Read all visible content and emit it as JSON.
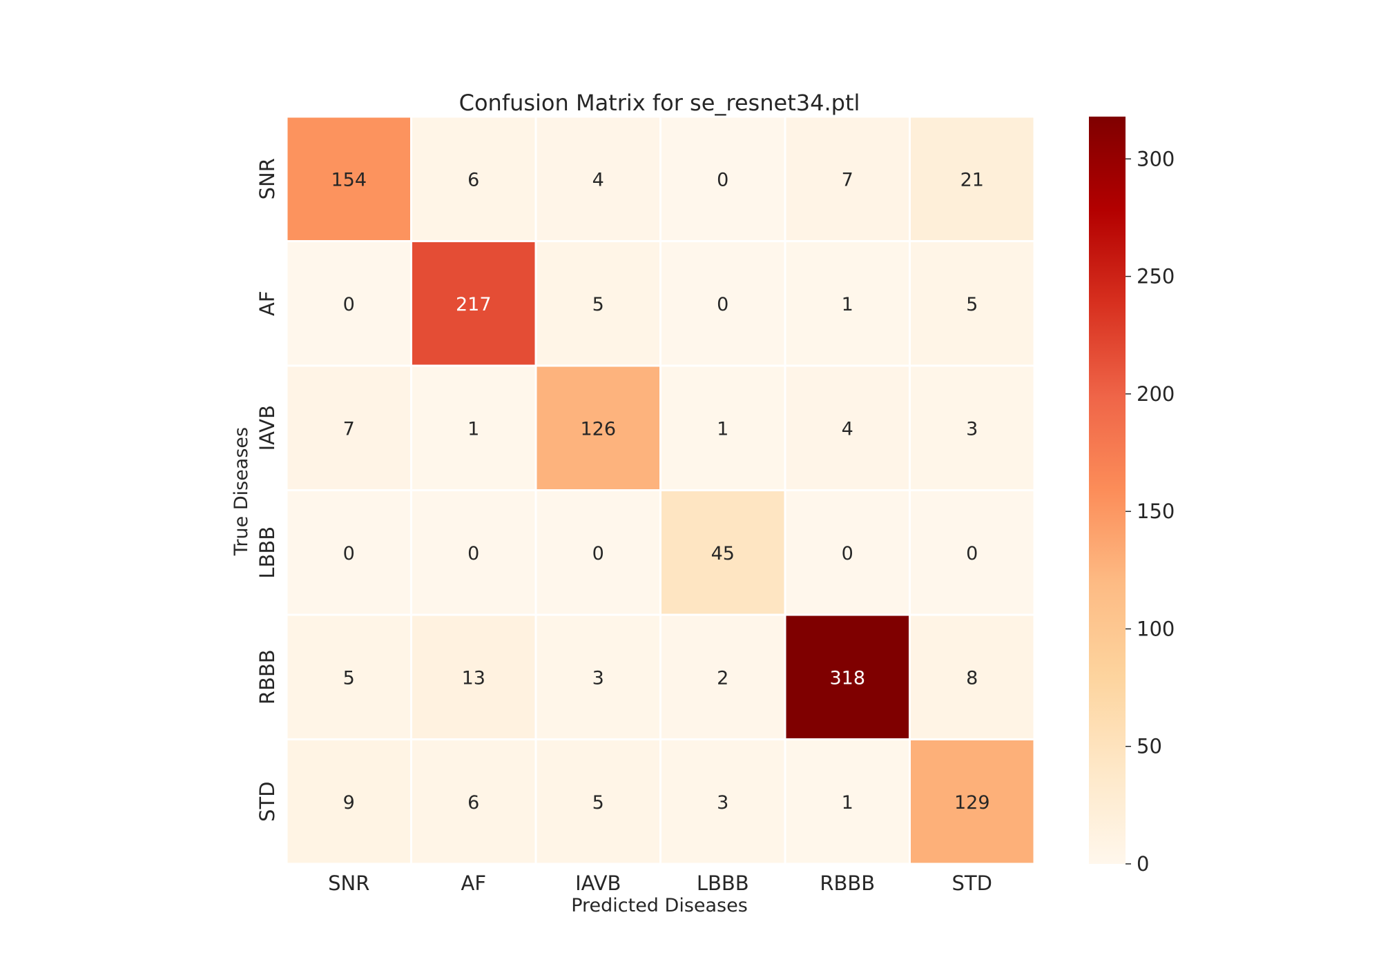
{
  "chart_data": {
    "type": "heatmap",
    "title": "Confusion Matrix for se_resnet34.ptl",
    "xlabel": "Predicted Diseases",
    "ylabel": "True Diseases",
    "x_categories": [
      "SNR",
      "AF",
      "IAVB",
      "LBBB",
      "RBBB",
      "STD"
    ],
    "y_categories": [
      "SNR",
      "AF",
      "IAVB",
      "LBBB",
      "RBBB",
      "STD"
    ],
    "values": [
      [
        154,
        6,
        4,
        0,
        7,
        21
      ],
      [
        0,
        217,
        5,
        0,
        1,
        5
      ],
      [
        7,
        1,
        126,
        1,
        4,
        3
      ],
      [
        0,
        0,
        0,
        45,
        0,
        0
      ],
      [
        5,
        13,
        3,
        2,
        318,
        8
      ],
      [
        9,
        6,
        5,
        3,
        1,
        129
      ]
    ],
    "colormap": "OrRd",
    "colorbar": {
      "range": [
        0,
        318
      ],
      "ticks": [
        0,
        50,
        100,
        150,
        200,
        250,
        300
      ],
      "placement": "right"
    },
    "grid": false,
    "legend": "none"
  }
}
